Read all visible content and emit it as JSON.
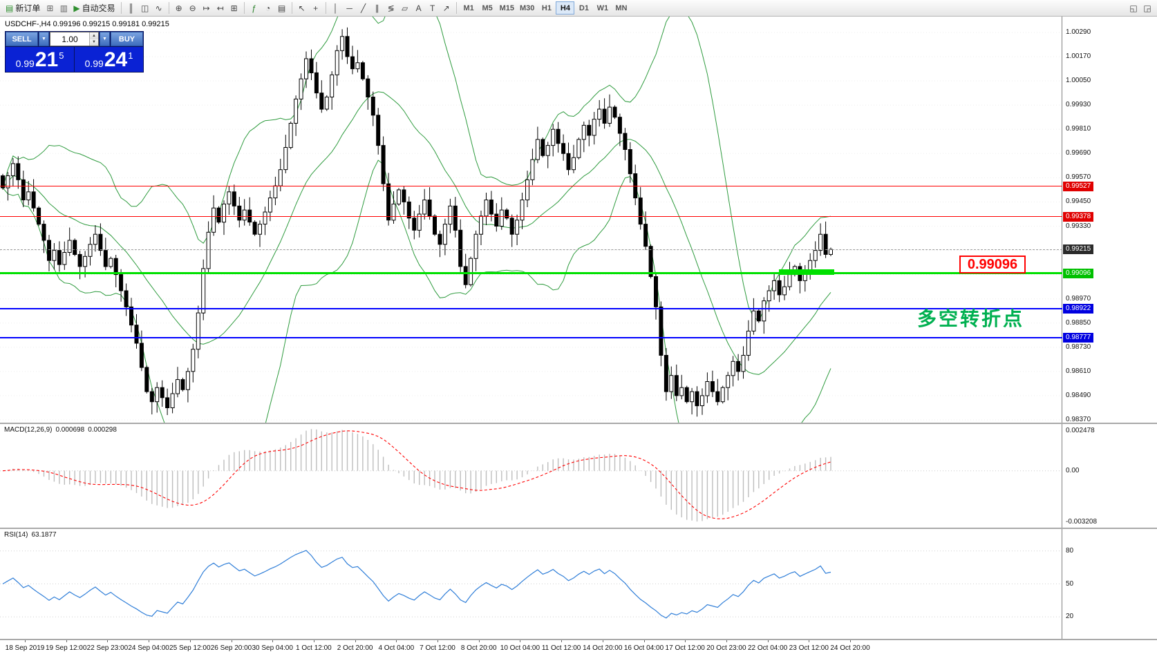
{
  "toolbar": {
    "left_groups": [
      {
        "items": [
          {
            "name": "new-order-button",
            "glyph": "▤",
            "glyph_color": "#2f8f2f",
            "label": "新订单"
          },
          {
            "name": "new-chart-button",
            "glyph": "⊞",
            "glyph_color": "#666666"
          },
          {
            "name": "profiles-button",
            "glyph": "▥",
            "glyph_color": "#666666"
          },
          {
            "name": "autotrading-button",
            "glyph": "▶",
            "glyph_color": "#2f8f2f",
            "label": "自动交易"
          }
        ]
      },
      {
        "items": [
          {
            "name": "bar-chart-button",
            "glyph": "║"
          },
          {
            "name": "candlestick-chart-button",
            "glyph": "◫"
          },
          {
            "name": "line-chart-button",
            "glyph": "∿"
          }
        ]
      },
      {
        "items": [
          {
            "name": "zoom-in-button",
            "glyph": "⊕"
          },
          {
            "name": "zoom-out-button",
            "glyph": "⊖"
          },
          {
            "name": "auto-scroll-button",
            "glyph": "↦"
          },
          {
            "name": "chart-shift-button",
            "glyph": "↤"
          },
          {
            "name": "grid-button",
            "glyph": "⊞"
          }
        ]
      },
      {
        "items": [
          {
            "name": "indicators-button",
            "glyph": "ƒ",
            "glyph_color": "#267f26"
          },
          {
            "name": "periods-button",
            "glyph": "◔"
          },
          {
            "name": "templates-button",
            "glyph": "▤"
          }
        ]
      },
      {
        "items": [
          {
            "name": "cursor-button",
            "glyph": "↖"
          },
          {
            "name": "crosshair-button",
            "glyph": "+"
          }
        ]
      },
      {
        "items": [
          {
            "name": "vertical-line-button",
            "glyph": "│"
          },
          {
            "name": "horizontal-line-button",
            "glyph": "─"
          },
          {
            "name": "trendline-button",
            "glyph": "╱"
          },
          {
            "name": "channel-button",
            "glyph": "∥"
          },
          {
            "name": "fibonacci-button",
            "glyph": "≶"
          },
          {
            "name": "shapes-button",
            "glyph": "▱"
          },
          {
            "name": "text-button",
            "glyph": "A"
          },
          {
            "name": "text-label-button",
            "glyph": "T"
          },
          {
            "name": "arrows-button",
            "glyph": "↗"
          }
        ]
      }
    ],
    "timeframes": {
      "items": [
        "M1",
        "M5",
        "M15",
        "M30",
        "H1",
        "H4",
        "D1",
        "W1",
        "MN"
      ],
      "active": "H4"
    },
    "right_items": [
      {
        "name": "chart-window-button",
        "glyph": "◱"
      },
      {
        "name": "panel-toggle-button",
        "glyph": "◲"
      }
    ]
  },
  "chart": {
    "symbol_info": "USDCHF-,H4 0.99196 0.99215 0.99181 0.99215",
    "trade_panel": {
      "sell_label": "SELL",
      "buy_label": "BUY",
      "volume": "1.00",
      "sell_price_main": "0.99",
      "sell_price_big": "21",
      "sell_price_sup": "5",
      "buy_price_main": "0.99",
      "buy_price_big": "24",
      "buy_price_sup": "1"
    },
    "price_axis_labels": [
      "1.00290",
      "1.00170",
      "1.00050",
      "0.99930",
      "0.99810",
      "0.99690",
      "0.99570",
      "0.99450",
      "0.99330",
      "0.99210",
      "0.99090",
      "0.98970",
      "0.98850",
      "0.98730",
      "0.98610",
      "0.98490",
      "0.98370"
    ],
    "hlines": [
      {
        "name": "resistance-line-1",
        "price": 0.99527,
        "label": "0.99527",
        "color": "#ff0000",
        "thickness": 1,
        "tag_bg": "#e00000"
      },
      {
        "name": "resistance-line-2",
        "price": 0.99378,
        "label": "0.99378",
        "color": "#ff0000",
        "thickness": 1,
        "tag_bg": "#e00000"
      },
      {
        "name": "pivot-line-green",
        "price": 0.99096,
        "label": "0.99096",
        "color": "#00e000",
        "thickness": 3,
        "tag_bg": "#00c000"
      },
      {
        "name": "support-line-1",
        "price": 0.98922,
        "label": "0.98922",
        "color": "#0000ff",
        "thickness": 2,
        "tag_bg": "#0000e0"
      },
      {
        "name": "support-line-2",
        "price": 0.98777,
        "label": "0.98777",
        "color": "#0000ff",
        "thickness": 2,
        "tag_bg": "#0000e0"
      }
    ],
    "current_price": {
      "value": 0.99215,
      "label": "0.99215",
      "tag_bg": "#2b2b2b"
    },
    "annotations": {
      "price_callout_text": "0.99096",
      "turning_point_text": "多空转折点",
      "turning_point_color": "#00b050"
    },
    "colors": {
      "bollinger": "#2e9b3e",
      "candle_up": "#ffffff",
      "candle_down": "#000000",
      "candle_outline": "#000000"
    }
  },
  "indicator_panels": {
    "macd": {
      "label": "MACD(12,26,9)",
      "value_main": "0.000698",
      "value_signal": "0.000298",
      "axis_labels": [
        "0.002478",
        "0.00",
        "-0.003208"
      ],
      "histogram_color": "#bdbdbd",
      "signal_color": "#ff0000"
    },
    "rsi": {
      "label": "RSI(14)",
      "value": "63.1877",
      "levels": [
        80,
        50,
        20
      ],
      "line_color": "#2f7ed8"
    }
  },
  "chart_data": {
    "type": "candlestick",
    "symbol": "USDCHF",
    "timeframe": "H4",
    "title": "USDCHF-,H4",
    "current_bar_ohlc": {
      "open": 0.99196,
      "high": 0.99215,
      "low": 0.99181,
      "close": 0.99215
    },
    "visible_price_range": [
      0.9837,
      1.0029
    ],
    "bollinger": {
      "period": 20,
      "deviation": 2
    },
    "macd_params": [
      12,
      26,
      9
    ],
    "rsi_period": 14,
    "closes": [
      0.9952,
      0.9958,
      0.9964,
      0.9956,
      0.9946,
      0.995,
      0.9942,
      0.9934,
      0.9926,
      0.9916,
      0.9921,
      0.9914,
      0.992,
      0.9926,
      0.9919,
      0.9913,
      0.9918,
      0.9924,
      0.9929,
      0.9921,
      0.9913,
      0.9917,
      0.9909,
      0.9901,
      0.9893,
      0.9884,
      0.9875,
      0.9863,
      0.9851,
      0.9846,
      0.9853,
      0.9848,
      0.9843,
      0.985,
      0.9857,
      0.9852,
      0.9861,
      0.9872,
      0.989,
      0.9912,
      0.993,
      0.9942,
      0.9935,
      0.9944,
      0.995,
      0.9943,
      0.9936,
      0.9941,
      0.9935,
      0.9929,
      0.9934,
      0.994,
      0.9947,
      0.9953,
      0.9961,
      0.9972,
      0.9984,
      0.9996,
      1.0006,
      1.0016,
      1.0009,
      0.9999,
      0.9991,
      0.9997,
      1.0008,
      1.002,
      1.0027,
      1.0017,
      1.0011,
      1.0014,
      1.0006,
      0.9997,
      0.9988,
      0.9973,
      0.9954,
      0.9936,
      0.9944,
      0.9951,
      0.9945,
      0.9937,
      0.9931,
      0.9939,
      0.9946,
      0.9938,
      0.9929,
      0.9924,
      0.9934,
      0.9943,
      0.9931,
      0.9913,
      0.9904,
      0.9917,
      0.9929,
      0.9938,
      0.9946,
      0.9939,
      0.9933,
      0.9941,
      0.9937,
      0.9929,
      0.9936,
      0.9946,
      0.9956,
      0.9966,
      0.9976,
      0.9968,
      0.9973,
      0.9981,
      0.9974,
      0.9969,
      0.9961,
      0.9967,
      0.9976,
      0.9983,
      0.9978,
      0.9986,
      0.9991,
      0.9984,
      0.9992,
      0.9987,
      0.9979,
      0.9971,
      0.9959,
      0.9947,
      0.9934,
      0.9923,
      0.9908,
      0.9893,
      0.9869,
      0.9851,
      0.9859,
      0.9849,
      0.9853,
      0.9846,
      0.9851,
      0.9844,
      0.9849,
      0.9856,
      0.9851,
      0.9846,
      0.9853,
      0.9859,
      0.9866,
      0.9861,
      0.9869,
      0.9881,
      0.9891,
      0.9886,
      0.9896,
      0.9901,
      0.9906,
      0.9899,
      0.9903,
      0.9909,
      0.9913,
      0.9906,
      0.9911,
      0.9916,
      0.9921,
      0.9929,
      0.9919,
      0.99215
    ],
    "time_labels": [
      "18 Sep 2019",
      "19 Sep 12:00",
      "22 Sep 23:00",
      "24 Sep 04:00",
      "25 Sep 12:00",
      "26 Sep 20:00",
      "30 Sep 04:00",
      "1 Oct 12:00",
      "2 Oct 20:00",
      "4 Oct 04:00",
      "7 Oct 12:00",
      "8 Oct 20:00",
      "10 Oct 04:00",
      "11 Oct 12:00",
      "14 Oct 20:00",
      "16 Oct 04:00",
      "17 Oct 12:00",
      "20 Oct 23:00",
      "22 Oct 04:00",
      "23 Oct 12:00",
      "24 Oct 20:00"
    ]
  }
}
